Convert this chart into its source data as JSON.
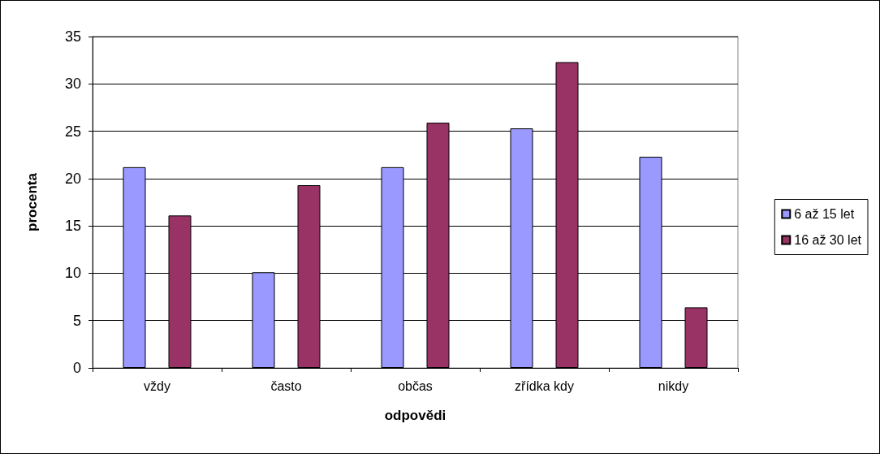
{
  "chart_data": {
    "type": "bar",
    "xlabel": "odpovědi",
    "ylabel": "procenta",
    "categories": [
      "vždy",
      "často",
      "občas",
      "zřídka kdy",
      "nikdy"
    ],
    "series": [
      {
        "name": "6 až 15 let",
        "color": "#9999ff",
        "values": [
          21.2,
          10.1,
          21.2,
          25.3,
          22.3
        ]
      },
      {
        "name": "16 až 30 let",
        "color": "#993366",
        "values": [
          16.1,
          19.3,
          25.9,
          32.3,
          6.4
        ]
      }
    ],
    "ylim": [
      0,
      35
    ],
    "yticks": [
      0,
      5,
      10,
      15,
      20,
      25,
      30,
      35
    ],
    "grid": "y",
    "legend": "right"
  }
}
